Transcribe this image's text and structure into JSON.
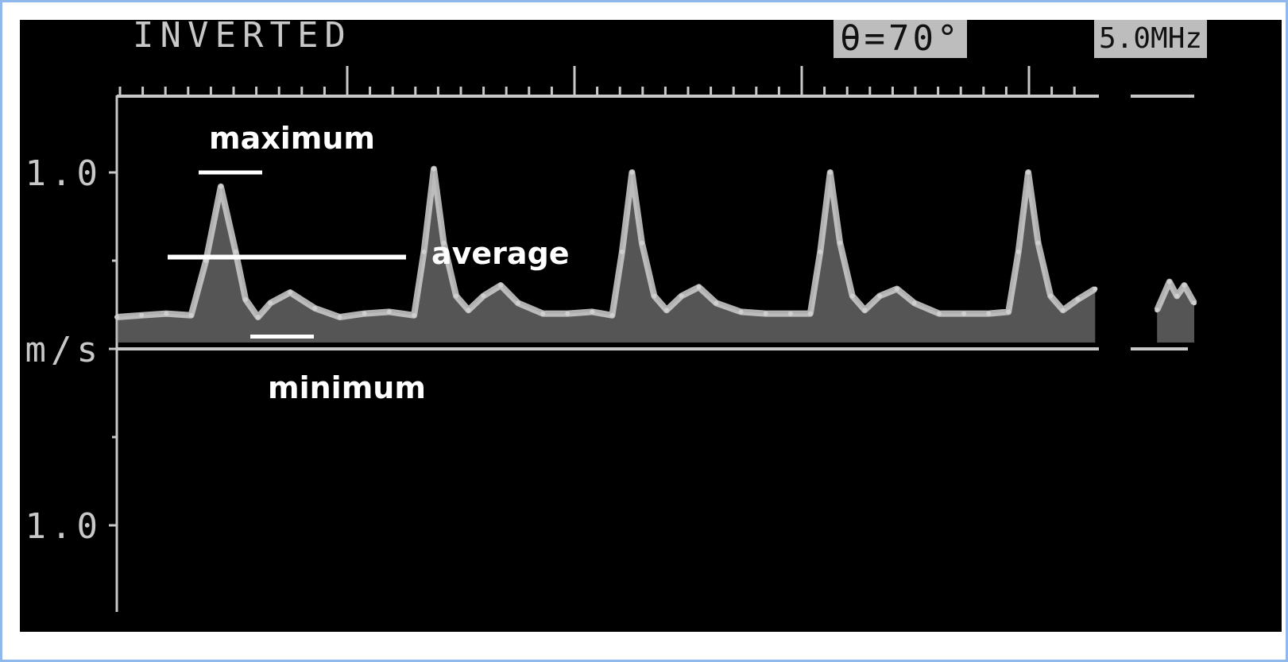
{
  "header": {
    "mode_label": "INVERTED",
    "angle_label": "θ=70°",
    "freq_label": "5.0MHz"
  },
  "annotations": {
    "maximum": "maximum",
    "average": "average",
    "minimum": "minimum"
  },
  "colors": {
    "background": "#000000",
    "trace": "#cfcfcf",
    "axis": "#c8c8c8",
    "annotation": "#ffffff",
    "frame_border": "#8fb8ec"
  },
  "chart_data": {
    "type": "line",
    "title": "",
    "xlabel": "",
    "ylabel": "m/s",
    "y_tick_labels": [
      "1.0",
      "m/s",
      "1.0"
    ],
    "ylim": [
      -1.1,
      1.3
    ],
    "xlim": [
      0,
      4.35
    ],
    "grid": false,
    "series": [
      {
        "name": "",
        "x": [
          0,
          0.1,
          0.2,
          0.3,
          0.36,
          0.42,
          0.48,
          0.52,
          0.57,
          0.62,
          0.7,
          0.8,
          0.9,
          1.0,
          1.1,
          1.2,
          1.24,
          1.28,
          1.32,
          1.37,
          1.42,
          1.48,
          1.55,
          1.62,
          1.72,
          1.82,
          1.92,
          2.0,
          2.04,
          2.08,
          2.12,
          2.17,
          2.22,
          2.28,
          2.35,
          2.42,
          2.52,
          2.62,
          2.72,
          2.8,
          2.84,
          2.88,
          2.92,
          2.97,
          3.02,
          3.08,
          3.15,
          3.22,
          3.32,
          3.42,
          3.52,
          3.6,
          3.64,
          3.68,
          3.72,
          3.77,
          3.82,
          3.88,
          3.95,
          4.02,
          4.09,
          4.2,
          4.25,
          4.28,
          4.31,
          4.35
        ],
        "values": [
          0.18,
          0.19,
          0.2,
          0.19,
          0.5,
          0.92,
          0.55,
          0.28,
          0.18,
          0.26,
          0.32,
          0.23,
          0.18,
          0.2,
          0.21,
          0.19,
          0.55,
          1.02,
          0.6,
          0.3,
          0.22,
          0.3,
          0.36,
          0.26,
          0.2,
          0.2,
          0.21,
          0.19,
          0.55,
          1.0,
          0.6,
          0.3,
          0.22,
          0.3,
          0.35,
          0.26,
          0.21,
          0.2,
          0.2,
          0.2,
          0.55,
          1.0,
          0.6,
          0.3,
          0.22,
          0.3,
          0.34,
          0.26,
          0.2,
          0.2,
          0.2,
          0.21,
          0.55,
          1.0,
          0.6,
          0.3,
          0.22,
          0.28,
          0.34,
          0.28,
          0.2,
          0.22,
          0.38,
          0.3,
          0.36,
          0.26
        ]
      }
    ],
    "markers": {
      "maximum": 1.0,
      "average": 0.52,
      "minimum": 0.07
    }
  }
}
